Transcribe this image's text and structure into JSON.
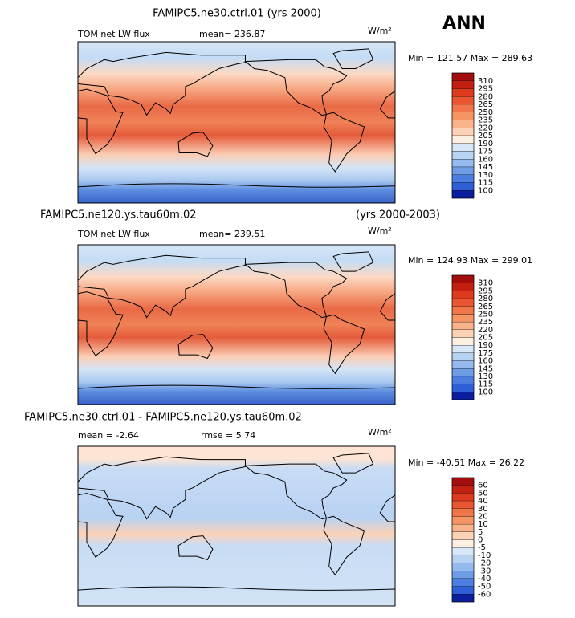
{
  "header": {
    "season": "ANN"
  },
  "colors": [
    "#a30d0d",
    "#c42012",
    "#dd3a1e",
    "#e95631",
    "#f07548",
    "#f59563",
    "#f9b38b",
    "#fcd2b6",
    "#fdeee2",
    "#d8e7f8",
    "#b8d2f3",
    "#95baee",
    "#6e9de6",
    "#4b7ee0",
    "#2e5fd6",
    "#0a1e9e"
  ],
  "panels": [
    {
      "title": "FAMIPC5.ne30.ctrl.01 (yrs 2000)",
      "variable": "TOM net LW flux",
      "stat": "mean= 236.87",
      "units": "W/m²",
      "range": "Min = 121.57 Max = 289.63",
      "levels": [
        310,
        295,
        280,
        265,
        250,
        235,
        220,
        205,
        190,
        175,
        160,
        145,
        130,
        115,
        100
      ]
    },
    {
      "title": "FAMIPC5.ne120.ys.tau60m.02",
      "years": "(yrs 2000-2003)",
      "variable": "TOM net LW flux",
      "stat": "mean= 239.51",
      "units": "W/m²",
      "range": "Min = 124.93 Max = 299.01",
      "levels": [
        310,
        295,
        280,
        265,
        250,
        235,
        220,
        205,
        190,
        175,
        160,
        145,
        130,
        115,
        100
      ]
    },
    {
      "title": "FAMIPC5.ne30.ctrl.01 - FAMIPC5.ne120.ys.tau60m.02",
      "stat": "mean =  -2.64",
      "stat2": "rmse =  5.74",
      "units": "W/m²",
      "range": "Min = -40.51 Max =  26.22",
      "levels": [
        60,
        50,
        40,
        30,
        20,
        10,
        5,
        0,
        -5,
        -10,
        -20,
        -30,
        -40,
        -50,
        -60
      ]
    }
  ]
}
